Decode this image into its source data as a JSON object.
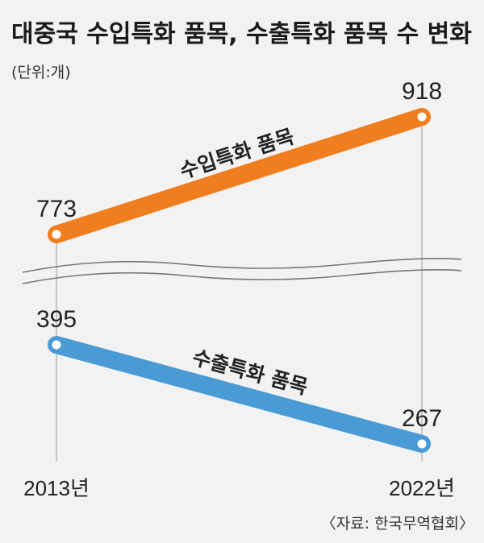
{
  "title": "대중국 수입특화 품목, 수출특화 품목 수 변화",
  "unit": "(단위:개)",
  "source": "〈자료: 한국무역협회〉",
  "colors": {
    "import": "#f07d1e",
    "export": "#4a9ad6",
    "background": "#f2f2f2"
  },
  "chart_data": {
    "type": "line",
    "categories": [
      "2013년",
      "2022년"
    ],
    "axis_break": true,
    "series": [
      {
        "name": "수입특화 품목",
        "values": [
          773,
          918
        ]
      },
      {
        "name": "수출특화 품목",
        "values": [
          395,
          267
        ]
      }
    ]
  }
}
